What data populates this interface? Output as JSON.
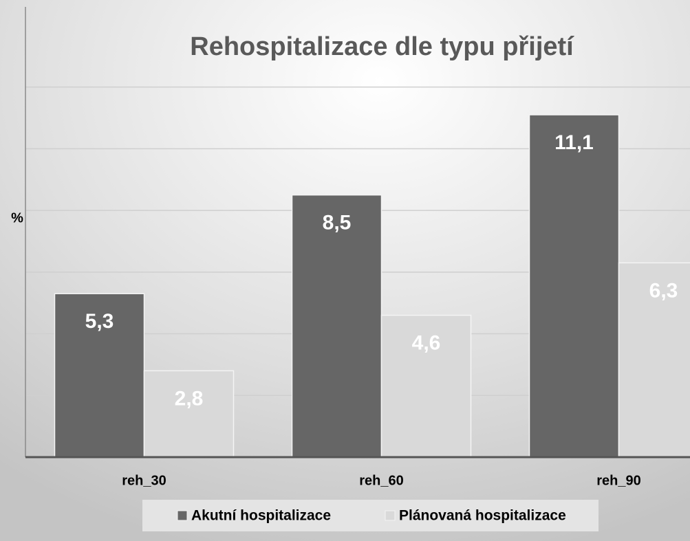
{
  "chart_data": {
    "type": "bar",
    "title": "Rehospitalizace dle typu přijetí",
    "y_label": "%",
    "categories": [
      "reh_30",
      "reh_60",
      "reh_90"
    ],
    "series": [
      {
        "name": "Akutní hospitalizace",
        "color": "#666666",
        "values": [
          5.3,
          8.5,
          11.1
        ],
        "value_labels": [
          "5,3",
          "8,5",
          "11,1"
        ]
      },
      {
        "name": "Plánovaná hospitalizace",
        "color": "#d9d9d9",
        "values": [
          2.8,
          4.6,
          6.3
        ],
        "value_labels": [
          "2,8",
          "4,6",
          "6,3"
        ]
      }
    ],
    "ylim": [
      0,
      14.6
    ],
    "yticks": [
      0,
      2,
      4,
      6,
      8,
      10,
      12
    ],
    "grid": true,
    "legend": "bottom"
  }
}
